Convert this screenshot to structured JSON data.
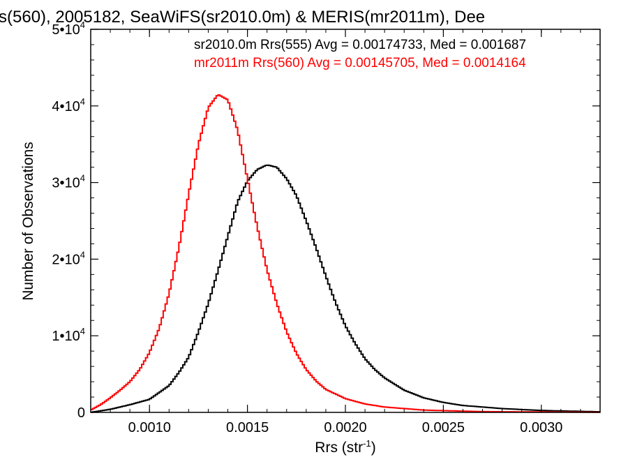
{
  "chart_data": {
    "type": "line",
    "title": "s(560), 2005182, SeaWiFS(sr2010.0m) & MERIS(mr2011m), Dee",
    "xlabel": "Rrs (str",
    "xlabel_sup": "-1",
    "xlabel_close": ")",
    "ylabel": "Number of Observations",
    "xlim": [
      0.0007,
      0.0033
    ],
    "ylim": [
      0,
      50000
    ],
    "x_ticks": [
      {
        "value": 0.001,
        "label": "0.0010"
      },
      {
        "value": 0.0015,
        "label": "0.0015"
      },
      {
        "value": 0.002,
        "label": "0.0020"
      },
      {
        "value": 0.0025,
        "label": "0.0025"
      },
      {
        "value": 0.003,
        "label": "0.0030"
      }
    ],
    "y_ticks": [
      {
        "value": 0,
        "mantissa": "0",
        "exp": ""
      },
      {
        "value": 10000,
        "mantissa": "1•10",
        "exp": "4"
      },
      {
        "value": 20000,
        "mantissa": "2•10",
        "exp": "4"
      },
      {
        "value": 30000,
        "mantissa": "3•10",
        "exp": "4"
      },
      {
        "value": 40000,
        "mantissa": "4•10",
        "exp": "4"
      },
      {
        "value": 50000,
        "mantissa": "5•10",
        "exp": "4"
      }
    ],
    "grid": false,
    "legend_position": "top-right",
    "series": [
      {
        "name": "sr2010.0m Rrs(555) Avg = 0.00174733, Med = 0.001687",
        "color": "#000000",
        "points": [
          [
            0.0007,
            0
          ],
          [
            0.0008,
            400
          ],
          [
            0.0009,
            1000
          ],
          [
            0.001,
            1700
          ],
          [
            0.0011,
            3500
          ],
          [
            0.00115,
            5200
          ],
          [
            0.0012,
            7200
          ],
          [
            0.00125,
            10500
          ],
          [
            0.0013,
            14200
          ],
          [
            0.00135,
            18500
          ],
          [
            0.0014,
            23000
          ],
          [
            0.00145,
            27500
          ],
          [
            0.0015,
            30200
          ],
          [
            0.00155,
            31700
          ],
          [
            0.0016,
            32300
          ],
          [
            0.00165,
            32000
          ],
          [
            0.0017,
            30500
          ],
          [
            0.00175,
            28300
          ],
          [
            0.0018,
            25000
          ],
          [
            0.00185,
            21500
          ],
          [
            0.0019,
            17800
          ],
          [
            0.00195,
            14300
          ],
          [
            0.002,
            11300
          ],
          [
            0.00205,
            9000
          ],
          [
            0.0021,
            7000
          ],
          [
            0.00215,
            5600
          ],
          [
            0.0022,
            4500
          ],
          [
            0.0023,
            2900
          ],
          [
            0.0024,
            1900
          ],
          [
            0.0025,
            1300
          ],
          [
            0.0026,
            900
          ],
          [
            0.0028,
            500
          ],
          [
            0.003,
            250
          ],
          [
            0.0033,
            80
          ]
        ]
      },
      {
        "name": "mr2011m Rrs(560) Avg = 0.00145705, Med = 0.0014164",
        "color": "#ff0000",
        "points": [
          [
            0.0007,
            300
          ],
          [
            0.00075,
            1000
          ],
          [
            0.0008,
            1900
          ],
          [
            0.00085,
            2900
          ],
          [
            0.0009,
            4000
          ],
          [
            0.00095,
            5600
          ],
          [
            0.001,
            7800
          ],
          [
            0.00105,
            11000
          ],
          [
            0.0011,
            15500
          ],
          [
            0.00115,
            21500
          ],
          [
            0.0012,
            28500
          ],
          [
            0.00125,
            35000
          ],
          [
            0.0013,
            39800
          ],
          [
            0.00135,
            41500
          ],
          [
            0.0014,
            40800
          ],
          [
            0.00145,
            36800
          ],
          [
            0.0015,
            30500
          ],
          [
            0.00155,
            24200
          ],
          [
            0.0016,
            18600
          ],
          [
            0.00165,
            14200
          ],
          [
            0.0017,
            10500
          ],
          [
            0.00175,
            7700
          ],
          [
            0.0018,
            5600
          ],
          [
            0.00185,
            4100
          ],
          [
            0.0019,
            3000
          ],
          [
            0.002,
            1800
          ],
          [
            0.0021,
            1100
          ],
          [
            0.0022,
            700
          ],
          [
            0.0024,
            300
          ],
          [
            0.0027,
            100
          ],
          [
            0.0033,
            20
          ]
        ]
      }
    ]
  }
}
